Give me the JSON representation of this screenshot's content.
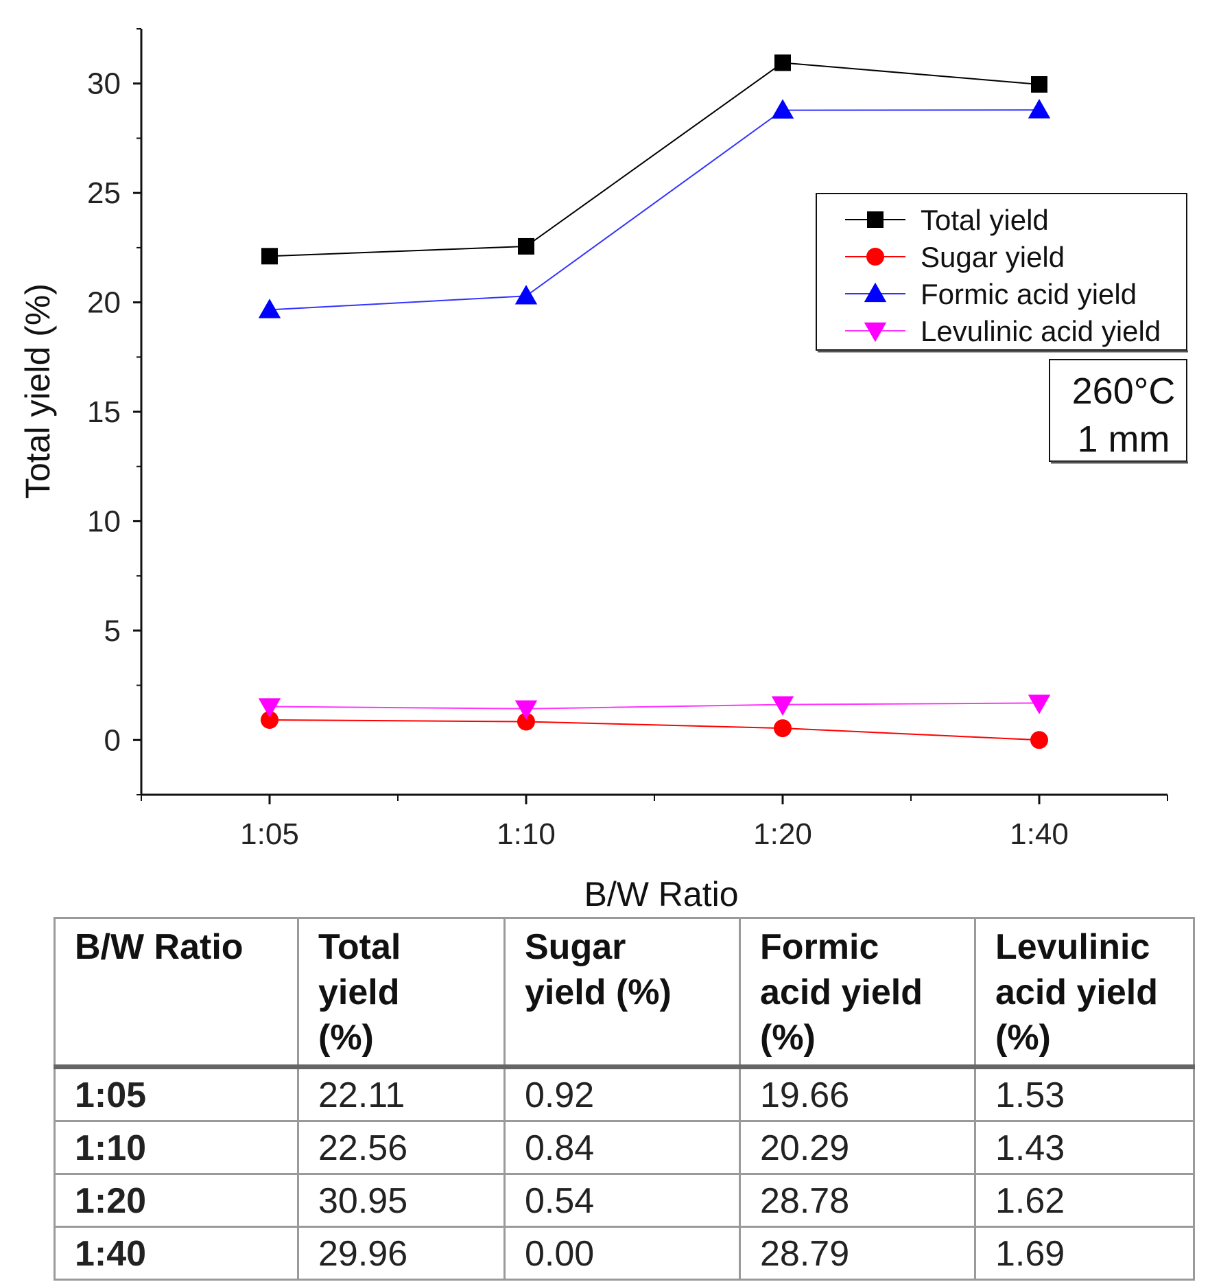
{
  "chart_data": {
    "type": "line",
    "categories": [
      "1:05",
      "1:10",
      "1:20",
      "1:40"
    ],
    "xlabel": "B/W Ratio",
    "ylabel": "Total yield (%)",
    "ylim": [
      -2.5,
      32.5
    ],
    "yticks": [
      0,
      5,
      10,
      15,
      20,
      25,
      30
    ],
    "grid": false,
    "legend_position": "top-right",
    "annotation": [
      "260°C",
      "1 mm"
    ],
    "series": [
      {
        "name": "Total yield",
        "marker": "square",
        "line_color": "#000000",
        "marker_color": "#000000",
        "values": [
          22.11,
          22.56,
          30.95,
          29.96
        ]
      },
      {
        "name": "Sugar yield",
        "marker": "circle",
        "line_color": "#ff0000",
        "marker_color": "#ff0000",
        "values": [
          0.92,
          0.84,
          0.54,
          0.0
        ]
      },
      {
        "name": "Formic acid yield",
        "marker": "triangle-up",
        "line_color": "#3333ff",
        "marker_color": "#0000ff",
        "values": [
          19.66,
          20.29,
          28.78,
          28.79
        ]
      },
      {
        "name": "Levulinic acid yield",
        "marker": "triangle-down",
        "line_color": "#ff33ff",
        "marker_color": "#ff00ff",
        "values": [
          1.53,
          1.43,
          1.62,
          1.69
        ]
      }
    ]
  },
  "table": {
    "headers": [
      [
        "B/W Ratio"
      ],
      [
        "Total",
        "yield",
        "(%)"
      ],
      [
        "Sugar",
        "yield (%)"
      ],
      [
        "Formic",
        "acid yield",
        "(%)"
      ],
      [
        "Levulinic",
        "acid yield",
        "(%)"
      ]
    ],
    "rows": [
      [
        "1:05",
        "22.11",
        "0.92",
        "19.66",
        "1.53"
      ],
      [
        "1:10",
        "22.56",
        "0.84",
        "20.29",
        "1.43"
      ],
      [
        "1:20",
        "30.95",
        "0.54",
        "28.78",
        "1.62"
      ],
      [
        "1:40",
        "29.96",
        "0.00",
        "28.79",
        "1.69"
      ]
    ]
  }
}
